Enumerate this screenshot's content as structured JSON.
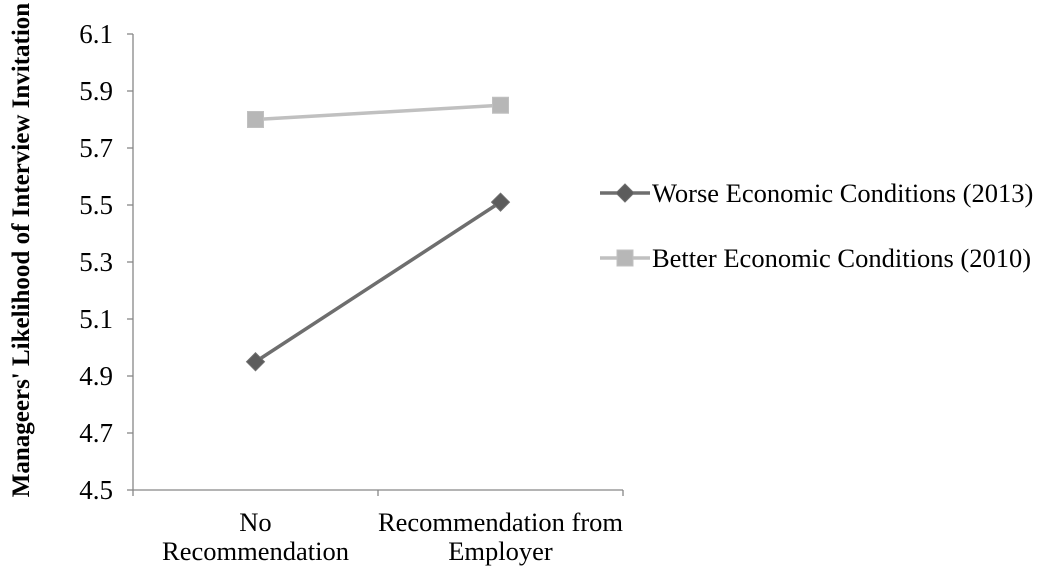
{
  "chart_data": {
    "type": "line",
    "categories": [
      "No\nRecommendation",
      "Recommendation from\nEmployer"
    ],
    "series": [
      {
        "name": "Worse Economic Conditions (2013)",
        "values": [
          4.95,
          5.51
        ],
        "color": "#6e6e6e",
        "marker": "diamond",
        "marker_color": "#5c5c5c"
      },
      {
        "name": "Better Economic Conditions (2010)",
        "values": [
          5.8,
          5.85
        ],
        "color": "#c0c0c0",
        "marker": "square",
        "marker_color": "#b7b7b7"
      }
    ],
    "ylabel": "Manageers' Likelihood of Interview Invitation",
    "ylim": [
      4.5,
      6.1
    ],
    "yticks": [
      4.5,
      4.7,
      4.9,
      5.1,
      5.3,
      5.5,
      5.7,
      5.9,
      6.1
    ],
    "grid": false,
    "legend": "right",
    "axis_color": "#878787"
  }
}
